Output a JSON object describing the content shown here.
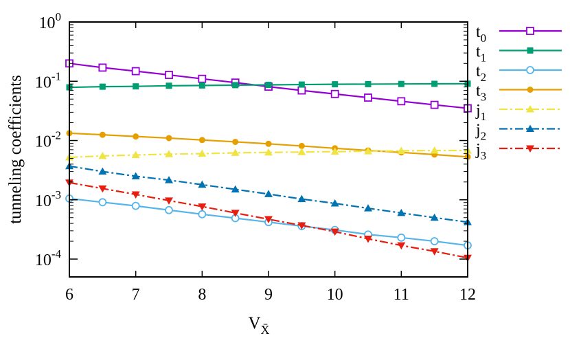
{
  "chart_data": {
    "type": "line",
    "xlabel": "V",
    "xlabel_sub": "X̄",
    "ylabel": "tunneling coefficients",
    "xlim": [
      6,
      12
    ],
    "ylim": [
      5e-05,
      1
    ],
    "yscale": "log",
    "grid": false,
    "legend_position": "right",
    "x_ticks": [
      "6",
      "7",
      "8",
      "9",
      "10",
      "11",
      "12"
    ],
    "y_ticks": [
      {
        "base": "10",
        "exp": "0",
        "value": 1
      },
      {
        "base": "10",
        "exp": "-1",
        "value": 0.1
      },
      {
        "base": "10",
        "exp": "-2",
        "value": 0.01
      },
      {
        "base": "10",
        "exp": "-3",
        "value": 0.001
      },
      {
        "base": "10",
        "exp": "-4",
        "value": 0.0001
      }
    ],
    "x": [
      6,
      6.5,
      7,
      7.5,
      8,
      8.5,
      9,
      9.5,
      10,
      10.5,
      11,
      11.5,
      12
    ],
    "series": [
      {
        "name": "t",
        "sub": "0",
        "color": "#9400d3",
        "dash": "",
        "marker": "square-open",
        "values": [
          0.2,
          0.17,
          0.148,
          0.128,
          0.11,
          0.095,
          0.081,
          0.07,
          0.061,
          0.053,
          0.046,
          0.04,
          0.035
        ]
      },
      {
        "name": "t",
        "sub": "1",
        "color": "#009e73",
        "dash": "",
        "marker": "square-filled",
        "values": [
          0.079,
          0.081,
          0.082,
          0.084,
          0.085,
          0.086,
          0.087,
          0.088,
          0.089,
          0.0895,
          0.09,
          0.0905,
          0.091
        ]
      },
      {
        "name": "t",
        "sub": "2",
        "color": "#56b4e9",
        "dash": "",
        "marker": "circle-open",
        "values": [
          0.00105,
          0.00091,
          0.00079,
          0.00067,
          0.00057,
          0.00049,
          0.00042,
          0.00036,
          0.00031,
          0.00026,
          0.00023,
          0.0002,
          0.00017
        ]
      },
      {
        "name": "t",
        "sub": "3",
        "color": "#e69f00",
        "dash": "",
        "marker": "circle-filled",
        "values": [
          0.0133,
          0.0125,
          0.0117,
          0.011,
          0.0102,
          0.0095,
          0.0088,
          0.0081,
          0.0074,
          0.0068,
          0.0063,
          0.0058,
          0.0053
        ]
      },
      {
        "name": "j",
        "sub": "1",
        "color": "#f0e442",
        "dash": "12,4,3,4",
        "marker": "triangle-up",
        "values": [
          0.0052,
          0.0055,
          0.0057,
          0.0059,
          0.006,
          0.0062,
          0.0063,
          0.0064,
          0.0065,
          0.0066,
          0.0067,
          0.0068,
          0.0068
        ]
      },
      {
        "name": "j",
        "sub": "2",
        "color": "#0072b2",
        "dash": "12,4,3,4",
        "marker": "triangle-up",
        "values": [
          0.0037,
          0.003,
          0.0025,
          0.00215,
          0.0018,
          0.0015,
          0.00125,
          0.00103,
          0.00087,
          0.00072,
          0.0006,
          0.0005,
          0.00042
        ]
      },
      {
        "name": "j",
        "sub": "3",
        "color": "#e51e10",
        "dash": "12,4,3,4",
        "marker": "triangle-down",
        "values": [
          0.00195,
          0.00155,
          0.00123,
          0.00097,
          0.00077,
          0.0006,
          0.00047,
          0.00037,
          0.00029,
          0.00022,
          0.00017,
          0.000135,
          0.000105
        ]
      }
    ]
  }
}
